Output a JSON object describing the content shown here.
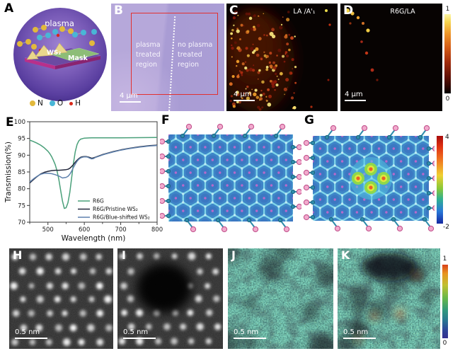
{
  "panels": {
    "A": {
      "label": "A",
      "plasma": "plasma",
      "ws2": "WS₂",
      "mask": "Mask",
      "legend": [
        {
          "name": "N",
          "color": "#e2b93c"
        },
        {
          "name": "O",
          "color": "#49b6d6"
        },
        {
          "name": "H",
          "color": "#d82818"
        }
      ]
    },
    "B": {
      "label": "B",
      "left_region": "plasma treated region",
      "right_region": "no plasma treated region",
      "scalebar": "4 μm"
    },
    "C": {
      "label": "C",
      "title": "LA /A'₁",
      "scalebar": "4 μm"
    },
    "D": {
      "label": "D",
      "title": "R6G/LA",
      "scalebar": "4 μm",
      "colorbar": {
        "max": "1",
        "min": "0"
      }
    },
    "E": {
      "label": "E"
    },
    "F": {
      "label": "F"
    },
    "G": {
      "label": "G",
      "colorbar": {
        "max": "4",
        "min": "-2"
      }
    },
    "H": {
      "label": "H",
      "scalebar": "0.5 nm"
    },
    "I": {
      "label": "I",
      "scalebar": "0.5 nm"
    },
    "J": {
      "label": "J",
      "scalebar": "0.5 nm"
    },
    "K": {
      "label": "K",
      "scalebar": "0.5 nm",
      "colorbar": {
        "max": "1",
        "min": "0"
      }
    }
  },
  "chart_data": {
    "type": "line",
    "title": "",
    "xlabel": "Wavelength (nm)",
    "ylabel": "Transmission(%)",
    "xlim": [
      450,
      800
    ],
    "ylim": [
      70,
      100
    ],
    "xticks": [
      500,
      600,
      700,
      800
    ],
    "yticks": [
      70,
      75,
      80,
      85,
      90,
      95,
      100
    ],
    "grid": false,
    "legend_position": "inside-lower-right",
    "series": [
      {
        "name": "R6G",
        "color": "#4aa07a",
        "x": [
          450,
          460,
          470,
          480,
          490,
          500,
          505,
          510,
          515,
          520,
          525,
          530,
          535,
          540,
          545,
          550,
          555,
          560,
          565,
          570,
          575,
          580,
          585,
          590,
          600,
          620,
          650,
          700,
          750,
          800
        ],
        "y": [
          94.5,
          94.1,
          93.6,
          93.0,
          92.2,
          91.2,
          90.5,
          89.6,
          88.5,
          87.2,
          85.3,
          82.8,
          79.5,
          76.3,
          74.1,
          74.3,
          75.8,
          78.8,
          83.0,
          87.5,
          91.0,
          93.2,
          94.3,
          94.8,
          95.1,
          95.2,
          95.2,
          95.2,
          95.25,
          95.3
        ]
      },
      {
        "name": "R6G/Pristine WS₂",
        "color": "#23283c",
        "x": [
          450,
          460,
          470,
          480,
          490,
          500,
          510,
          520,
          530,
          540,
          550,
          555,
          560,
          565,
          570,
          575,
          580,
          585,
          590,
          595,
          600,
          605,
          610,
          615,
          620,
          625,
          630,
          640,
          650,
          660,
          680,
          700,
          720,
          750,
          780,
          800
        ],
        "y": [
          81.7,
          82.7,
          83.6,
          84.4,
          84.9,
          85.2,
          85.4,
          85.5,
          85.5,
          85.6,
          85.7,
          85.8,
          86.1,
          86.6,
          87.2,
          87.9,
          88.5,
          89.0,
          89.4,
          89.55,
          89.6,
          89.6,
          89.5,
          89.3,
          89.1,
          89.2,
          89.4,
          89.8,
          90.2,
          90.5,
          91.1,
          91.6,
          92.0,
          92.5,
          92.85,
          93.0
        ]
      },
      {
        "name": "R6G/Blue-shifted WS₂",
        "color": "#5f81ad",
        "x": [
          450,
          460,
          470,
          480,
          490,
          500,
          510,
          520,
          530,
          540,
          550,
          555,
          560,
          565,
          570,
          575,
          580,
          585,
          590,
          595,
          600,
          605,
          610,
          615,
          620,
          625,
          630,
          640,
          650,
          660,
          680,
          700,
          720,
          750,
          780,
          800
        ],
        "y": [
          82.0,
          82.9,
          83.7,
          84.3,
          84.6,
          84.6,
          84.5,
          84.2,
          83.8,
          83.2,
          83.4,
          83.7,
          84.3,
          85.2,
          86.3,
          87.3,
          88.2,
          88.8,
          89.2,
          89.4,
          89.5,
          89.5,
          89.4,
          89.1,
          88.9,
          89.0,
          89.3,
          89.7,
          90.1,
          90.4,
          91.0,
          91.5,
          91.9,
          92.4,
          92.75,
          92.9
        ]
      }
    ]
  }
}
